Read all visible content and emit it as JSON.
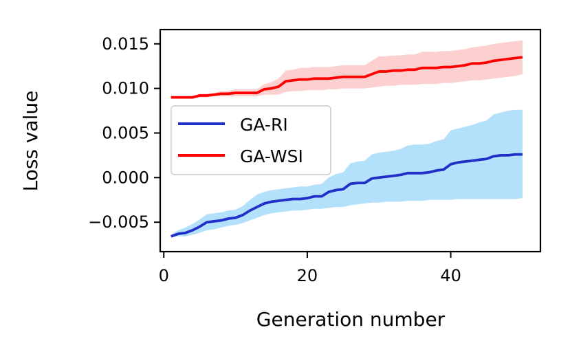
{
  "chart_data": {
    "type": "line",
    "title": "",
    "xlabel": "Generation number",
    "ylabel": "Loss value",
    "xlim": [
      -0.5,
      52.5
    ],
    "ylim": [
      -0.0083,
      0.0166
    ],
    "xticks": [
      0,
      20,
      40
    ],
    "xtick_labels": [
      "0",
      "20",
      "40"
    ],
    "yticks": [
      -0.005,
      0.0,
      0.005,
      0.01,
      0.015
    ],
    "ytick_labels": [
      "−0.005",
      "0.000",
      "0.005",
      "0.010",
      "0.015"
    ],
    "legend_position": "center-left",
    "grid": false,
    "x": [
      1,
      2,
      3,
      4,
      5,
      6,
      7,
      8,
      9,
      10,
      11,
      12,
      13,
      14,
      15,
      16,
      17,
      18,
      19,
      20,
      21,
      22,
      23,
      24,
      25,
      26,
      27,
      28,
      29,
      30,
      31,
      32,
      33,
      34,
      35,
      36,
      37,
      38,
      39,
      40,
      41,
      42,
      43,
      44,
      45,
      46,
      47,
      48,
      49,
      50
    ],
    "series": [
      {
        "name": "GA-RI",
        "color": "#1f2fc8",
        "band_color": "#b3e0fa",
        "values": [
          -0.0066,
          -0.0063,
          -0.0062,
          -0.0059,
          -0.0055,
          -0.005,
          -0.0049,
          -0.0048,
          -0.0046,
          -0.0045,
          -0.0042,
          -0.0037,
          -0.0033,
          -0.0029,
          -0.0027,
          -0.0026,
          -0.0025,
          -0.0024,
          -0.0024,
          -0.0023,
          -0.0021,
          -0.0021,
          -0.0016,
          -0.0014,
          -0.0013,
          -0.0007,
          -0.0006,
          -0.0006,
          -0.0001,
          0.0,
          0.0001,
          0.0002,
          0.0003,
          0.0005,
          0.0005,
          0.0005,
          0.0006,
          0.0008,
          0.0009,
          0.0015,
          0.0017,
          0.0018,
          0.0019,
          0.002,
          0.0021,
          0.0024,
          0.0025,
          0.0025,
          0.0026,
          0.0026
        ],
        "lower": [
          -0.0067,
          -0.0066,
          -0.0066,
          -0.0064,
          -0.0062,
          -0.0059,
          -0.0058,
          -0.0056,
          -0.0054,
          -0.0053,
          -0.0051,
          -0.0048,
          -0.0045,
          -0.0042,
          -0.004,
          -0.0039,
          -0.0038,
          -0.0037,
          -0.0037,
          -0.0036,
          -0.0035,
          -0.0035,
          -0.0034,
          -0.0033,
          -0.0033,
          -0.0031,
          -0.003,
          -0.0029,
          -0.0028,
          -0.0028,
          -0.0027,
          -0.0027,
          -0.0027,
          -0.0026,
          -0.0026,
          -0.0026,
          -0.0025,
          -0.0025,
          -0.0025,
          -0.0025,
          -0.0024,
          -0.0024,
          -0.0024,
          -0.0024,
          -0.0024,
          -0.0024,
          -0.0024,
          -0.0024,
          -0.0024,
          -0.0023
        ],
        "upper": [
          -0.0064,
          -0.0059,
          -0.0056,
          -0.0052,
          -0.0047,
          -0.0041,
          -0.004,
          -0.0039,
          -0.0037,
          -0.0036,
          -0.0032,
          -0.0025,
          -0.0019,
          -0.0016,
          -0.0014,
          -0.0013,
          -0.0012,
          -0.0011,
          -0.001,
          -0.001,
          -0.0008,
          -0.0007,
          0.0,
          0.0004,
          0.0006,
          0.0016,
          0.0018,
          0.0019,
          0.0026,
          0.0028,
          0.0029,
          0.003,
          0.0032,
          0.0036,
          0.0037,
          0.0037,
          0.0038,
          0.0041,
          0.0043,
          0.0053,
          0.0055,
          0.0057,
          0.0059,
          0.0062,
          0.0064,
          0.0071,
          0.0073,
          0.0075,
          0.0076,
          0.0076
        ]
      },
      {
        "name": "GA-WSI",
        "color": "#ff0000",
        "band_color": "#fdd0d0",
        "values": [
          0.009,
          0.009,
          0.009,
          0.009,
          0.0092,
          0.0092,
          0.0093,
          0.0094,
          0.0094,
          0.0095,
          0.0095,
          0.0095,
          0.0095,
          0.0099,
          0.01,
          0.0102,
          0.0108,
          0.0109,
          0.011,
          0.011,
          0.0111,
          0.0111,
          0.0111,
          0.0112,
          0.0113,
          0.0113,
          0.0113,
          0.0113,
          0.0116,
          0.0119,
          0.0119,
          0.012,
          0.012,
          0.0121,
          0.0121,
          0.0123,
          0.0123,
          0.0123,
          0.0124,
          0.0124,
          0.0125,
          0.0126,
          0.0128,
          0.0128,
          0.0129,
          0.0131,
          0.0132,
          0.0133,
          0.0134,
          0.0135
        ],
        "lower": [
          0.0089,
          0.0089,
          0.0089,
          0.0089,
          0.009,
          0.009,
          0.0091,
          0.0091,
          0.0091,
          0.0091,
          0.0091,
          0.0091,
          0.0091,
          0.0093,
          0.0093,
          0.0093,
          0.0096,
          0.0097,
          0.0097,
          0.0098,
          0.0098,
          0.0098,
          0.0099,
          0.0099,
          0.01,
          0.01,
          0.01,
          0.01,
          0.0101,
          0.0102,
          0.0103,
          0.0103,
          0.0104,
          0.0104,
          0.0104,
          0.0105,
          0.0105,
          0.0105,
          0.0106,
          0.0106,
          0.0107,
          0.0108,
          0.0109,
          0.0109,
          0.011,
          0.0111,
          0.0112,
          0.0113,
          0.0114,
          0.0116
        ],
        "upper": [
          0.0091,
          0.0091,
          0.0091,
          0.0091,
          0.0094,
          0.0094,
          0.0095,
          0.0097,
          0.0097,
          0.0099,
          0.0099,
          0.0099,
          0.0099,
          0.0105,
          0.0107,
          0.0111,
          0.012,
          0.0121,
          0.0123,
          0.0123,
          0.0124,
          0.0124,
          0.0124,
          0.0125,
          0.0126,
          0.0126,
          0.0126,
          0.0126,
          0.0131,
          0.0136,
          0.0136,
          0.0137,
          0.0137,
          0.0138,
          0.0138,
          0.0141,
          0.0141,
          0.0141,
          0.0142,
          0.0142,
          0.0143,
          0.0144,
          0.0146,
          0.0147,
          0.0148,
          0.015,
          0.0151,
          0.0152,
          0.0153,
          0.0154
        ]
      }
    ]
  }
}
